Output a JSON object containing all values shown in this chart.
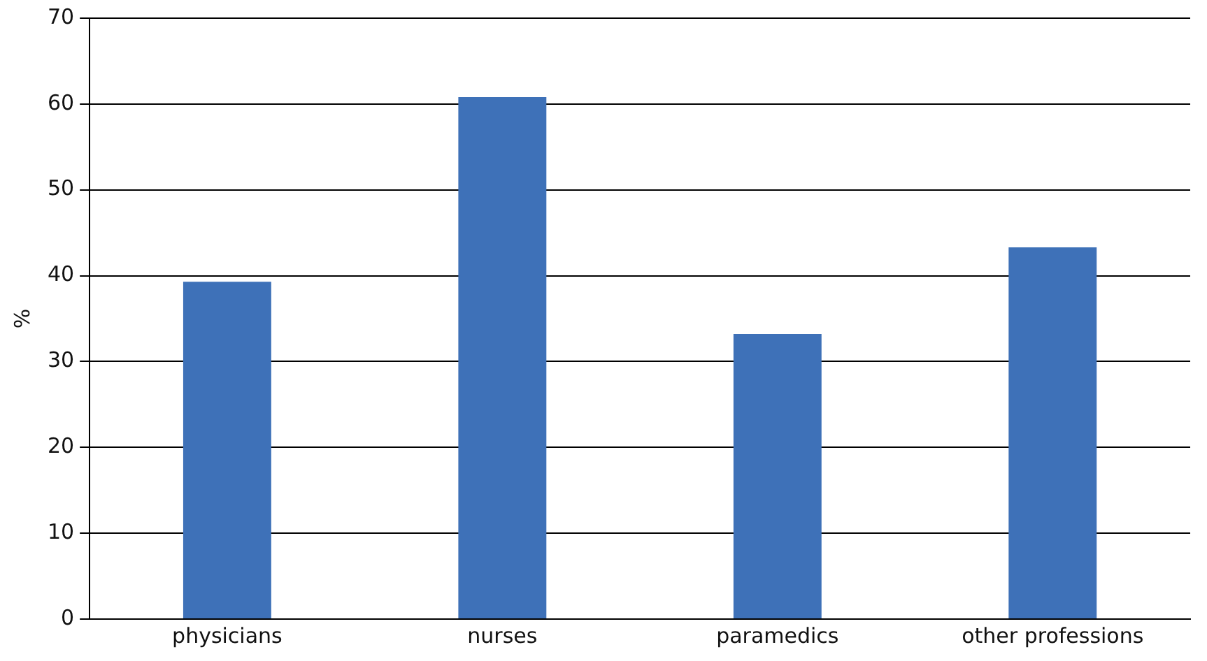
{
  "chart_data": {
    "type": "bar",
    "ylabel": "%",
    "categories": [
      "physicians",
      "nurses",
      "paramedics",
      "other professions"
    ],
    "values": [
      39.3,
      60.8,
      33.2,
      43.3
    ],
    "color": "#3e71b8",
    "ylim": [
      0,
      70
    ],
    "yticks": [
      0,
      10,
      20,
      30,
      40,
      50,
      60,
      70
    ],
    "grid": "y",
    "legend": false
  }
}
